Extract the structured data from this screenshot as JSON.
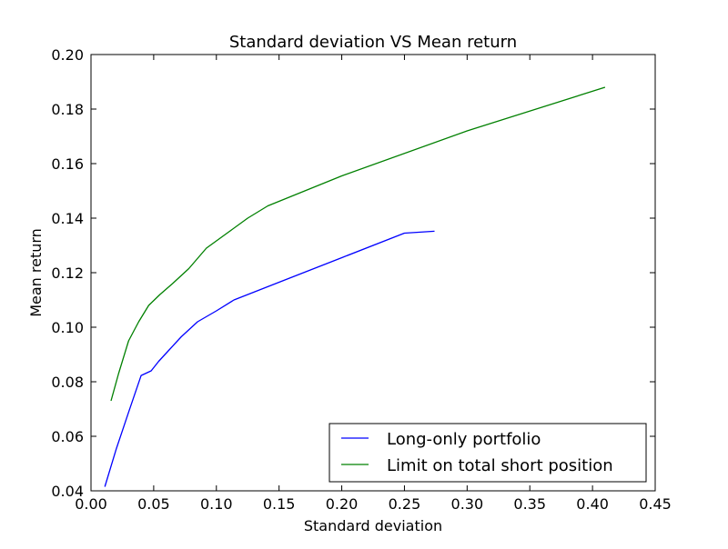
{
  "chart_data": {
    "type": "line",
    "title": "Standard deviation VS Mean return",
    "xlabel": "Standard deviation",
    "ylabel": "Mean return",
    "xlim": [
      0.0,
      0.45
    ],
    "ylim": [
      0.04,
      0.2
    ],
    "xticks": [
      "0.00",
      "0.05",
      "0.10",
      "0.15",
      "0.20",
      "0.25",
      "0.30",
      "0.35",
      "0.40",
      "0.45"
    ],
    "yticks": [
      "0.04",
      "0.06",
      "0.08",
      "0.10",
      "0.12",
      "0.14",
      "0.16",
      "0.18",
      "0.20"
    ],
    "grid": false,
    "legend_position": "lower-right",
    "series": [
      {
        "name": "Long-only portfolio",
        "color": "#0000ff",
        "x": [
          0.011,
          0.02,
          0.03,
          0.04,
          0.048,
          0.054,
          0.062,
          0.072,
          0.085,
          0.1,
          0.114,
          0.15,
          0.2,
          0.25,
          0.274
        ],
        "y": [
          0.0415,
          0.0552,
          0.0688,
          0.0823,
          0.084,
          0.0875,
          0.0915,
          0.0965,
          0.102,
          0.106,
          0.11,
          0.1165,
          0.1255,
          0.1345,
          0.1352
        ]
      },
      {
        "name": "Limit on total short position",
        "color": "#008000",
        "x": [
          0.016,
          0.022,
          0.03,
          0.038,
          0.046,
          0.055,
          0.065,
          0.078,
          0.092,
          0.11,
          0.125,
          0.141,
          0.2,
          0.3,
          0.41
        ],
        "y": [
          0.073,
          0.083,
          0.095,
          0.102,
          0.108,
          0.112,
          0.116,
          0.1215,
          0.129,
          0.135,
          0.14,
          0.1445,
          0.1555,
          0.172,
          0.188
        ]
      }
    ]
  }
}
